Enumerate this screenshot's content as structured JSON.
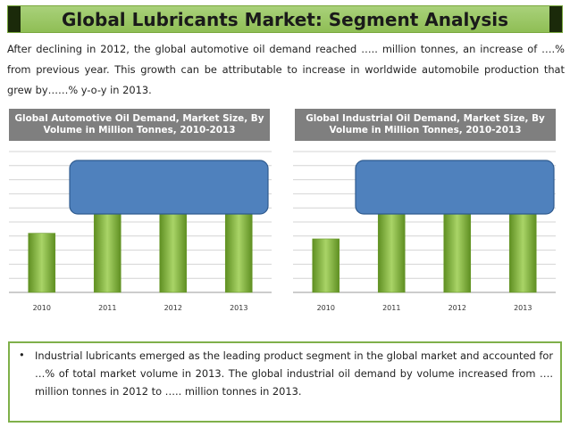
{
  "header": {
    "title": "Global Lubricants Market: Segment Analysis"
  },
  "intro": {
    "text": "After declining in 2012, the global automotive oil demand reached ….. million tonnes, an increase of ….% from previous year. This growth can be attributable to increase in worldwide automobile production that grew by……% y-o-y in 2013."
  },
  "colors": {
    "bar_green": "#7fae3e",
    "callout_blue": "#4f81bd",
    "panel_grey": "#7f7f7f",
    "title_green": "#9bc865"
  },
  "chart_data": [
    {
      "type": "bar",
      "title": "Global Automotive Oil Demand, Market Size, By Volume in Million Tonnes, 2010-2013",
      "categories": [
        "2010",
        "2011",
        "2012",
        "2013"
      ],
      "values": [
        0.42,
        0.88,
        0.88,
        0.88
      ],
      "ylim": [
        0,
        1
      ],
      "grid": true,
      "xlabel": "",
      "ylabel": ""
    },
    {
      "type": "bar",
      "title": "Global Industrial Oil Demand, Market Size, By Volume in Million Tonnes, 2010-2013",
      "categories": [
        "2010",
        "2011",
        "2012",
        "2013"
      ],
      "values": [
        0.38,
        0.88,
        0.88,
        0.88
      ],
      "ylim": [
        0,
        1
      ],
      "grid": true,
      "xlabel": "",
      "ylabel": ""
    }
  ],
  "bottom": {
    "bullet": "•",
    "text": "Industrial lubricants emerged as the leading product segment in the global market and accounted for …% of total market volume in 2013. The global industrial oil demand by volume increased from …. million tonnes in 2012 to ….. million tonnes in 2013."
  }
}
